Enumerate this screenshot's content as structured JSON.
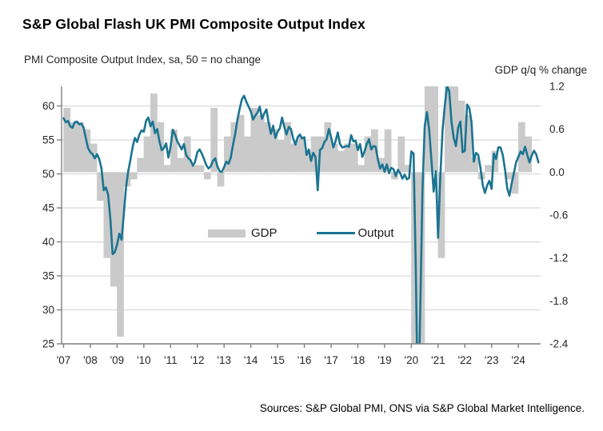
{
  "title": "S&P Global Flash UK PMI Composite Output Index",
  "subtitle": "PMI Composite Output Index, sa, 50 = no change",
  "source": "Sources: S&P Global PMI, ONS via S&P Global Market Intelligence.",
  "legend": {
    "gdp_label": "GDP",
    "output_label": "Output"
  },
  "colors": {
    "line": "#1b7491",
    "bar": "#cacaca",
    "grid": "#d9d9d9",
    "axis": "#7f7f7f",
    "tick_text": "#262626",
    "title_text": "#000000"
  },
  "chart_data": {
    "type": "combo-bar-line",
    "title": "S&P Global Flash UK PMI Composite Output Index",
    "grid": "horizontal",
    "legend_position": "inside-middle",
    "x_axis": {
      "tick_labels": [
        "'07",
        "'08",
        "'09",
        "'10",
        "'11",
        "'12",
        "'13",
        "'14",
        "'15",
        "'16",
        "'17",
        "'18",
        "'19",
        "'20",
        "'21",
        "'22",
        "'23",
        "'24"
      ],
      "start": "2007-01",
      "end": "2024-10"
    },
    "left_axis": {
      "title": "PMI Composite Output Index, sa, 50 = no change",
      "ticks": [
        25,
        30,
        35,
        40,
        45,
        50,
        55,
        60
      ],
      "min": 25,
      "max": 62.9
    },
    "right_axis": {
      "title": "GDP q/q % change",
      "tick_labels": [
        "1.2",
        "0.6",
        "0.0",
        "-0.6",
        "-1.2",
        "-1.8",
        "-2.4"
      ],
      "min": -2.4,
      "max": 1.2
    },
    "series": [
      {
        "name": "GDP",
        "type": "bar",
        "axis": "right",
        "frequency": "quarterly",
        "start": "2007-Q1",
        "end": "2024-Q2",
        "values": [
          0.9,
          0.7,
          0.7,
          0.6,
          0.4,
          -0.4,
          -1.2,
          -1.6,
          -2.3,
          -0.2,
          -0.1,
          0.2,
          0.5,
          1.1,
          0.7,
          0.1,
          0.6,
          0.2,
          0.5,
          0.1,
          0.1,
          -0.1,
          0.9,
          -0.2,
          0.5,
          0.7,
          0.8,
          0.5,
          0.9,
          0.8,
          0.7,
          0.6,
          0.45,
          0.7,
          0.4,
          0.5,
          0.3,
          0.5,
          0.5,
          0.7,
          0.4,
          0.3,
          0.4,
          0.4,
          0.1,
          0.5,
          0.6,
          0.2,
          0.6,
          -0.1,
          0.5,
          0.1,
          -2.6,
          -19.4,
          16.6,
          1.4,
          -1.2,
          6.3,
          1.7,
          1.0,
          0.8,
          0.2,
          -0.1,
          0.1,
          0.3,
          0.0,
          -0.1,
          -0.3,
          0.7,
          0.5
        ]
      },
      {
        "name": "Output",
        "type": "line",
        "axis": "left",
        "frequency": "monthly",
        "start": "2007-01",
        "end": "2024-10",
        "values": [
          58.2,
          57.6,
          57.8,
          57.0,
          56.8,
          57.6,
          57.7,
          57.3,
          57.4,
          56.8,
          55.2,
          53.8,
          53.2,
          52.9,
          52.3,
          52.9,
          52.2,
          50.8,
          47.6,
          48.0,
          46.9,
          43.3,
          38.2,
          38.5,
          39.6,
          41.2,
          40.3,
          44.0,
          48.0,
          50.4,
          52.1,
          54.0,
          55.3,
          54.7,
          55.8,
          56.4,
          56.2,
          57.8,
          58.3,
          57.0,
          57.7,
          56.0,
          56.6,
          54.8,
          53.5,
          53.8,
          54.5,
          52.4,
          54.0,
          56.5,
          55.8,
          54.8,
          54.2,
          53.6,
          54.4,
          52.8,
          52.3,
          52.0,
          51.2,
          51.8,
          53.2,
          53.6,
          53.0,
          52.2,
          51.3,
          50.8,
          51.1,
          51.9,
          52.3,
          51.1,
          50.4,
          50.3,
          51.0,
          51.8,
          51.5,
          52.4,
          54.3,
          55.9,
          58.0,
          59.6,
          61.0,
          61.5,
          60.6,
          59.9,
          59.2,
          58.0,
          58.6,
          59.0,
          59.9,
          58.1,
          58.9,
          59.5,
          57.5,
          55.9,
          57.1,
          55.3,
          56.2,
          56.7,
          58.3,
          56.9,
          55.8,
          56.9,
          56.6,
          55.2,
          54.3,
          55.4,
          55.8,
          55.2,
          55.4,
          52.8,
          53.6,
          51.9,
          53.1,
          52.5,
          47.6,
          53.5,
          53.8,
          54.7,
          55.1,
          56.6,
          55.4,
          53.9,
          54.8,
          56.1,
          54.4,
          53.9,
          54.0,
          54.1,
          54.0,
          55.7,
          54.8,
          54.9,
          53.5,
          54.4,
          52.5,
          53.3,
          54.4,
          55.1,
          53.6,
          54.1,
          54.0,
          52.1,
          50.8,
          51.4,
          50.3,
          51.4,
          50.1,
          50.9,
          50.7,
          49.7,
          50.6,
          50.1,
          49.3,
          49.9,
          49.2,
          49.4,
          53.3,
          53.0,
          36.0,
          13.8,
          30.0,
          47.7,
          57.0,
          59.1,
          56.5,
          52.1,
          47.4,
          50.4,
          40.6,
          49.6,
          56.4,
          60.0,
          62.9,
          62.2,
          57.7,
          55.3,
          54.1,
          56.8,
          57.7,
          53.2,
          53.4,
          60.2,
          59.7,
          57.6,
          51.8,
          53.1,
          52.8,
          50.9,
          48.4,
          47.2,
          48.3,
          49.0,
          47.8,
          53.0,
          52.2,
          53.9,
          53.9,
          52.8,
          50.7,
          47.9,
          46.8,
          48.6,
          50.1,
          51.7,
          52.5,
          53.3,
          52.9,
          54.0,
          52.8,
          51.7,
          52.7,
          53.4,
          52.9,
          51.7
        ]
      }
    ]
  }
}
